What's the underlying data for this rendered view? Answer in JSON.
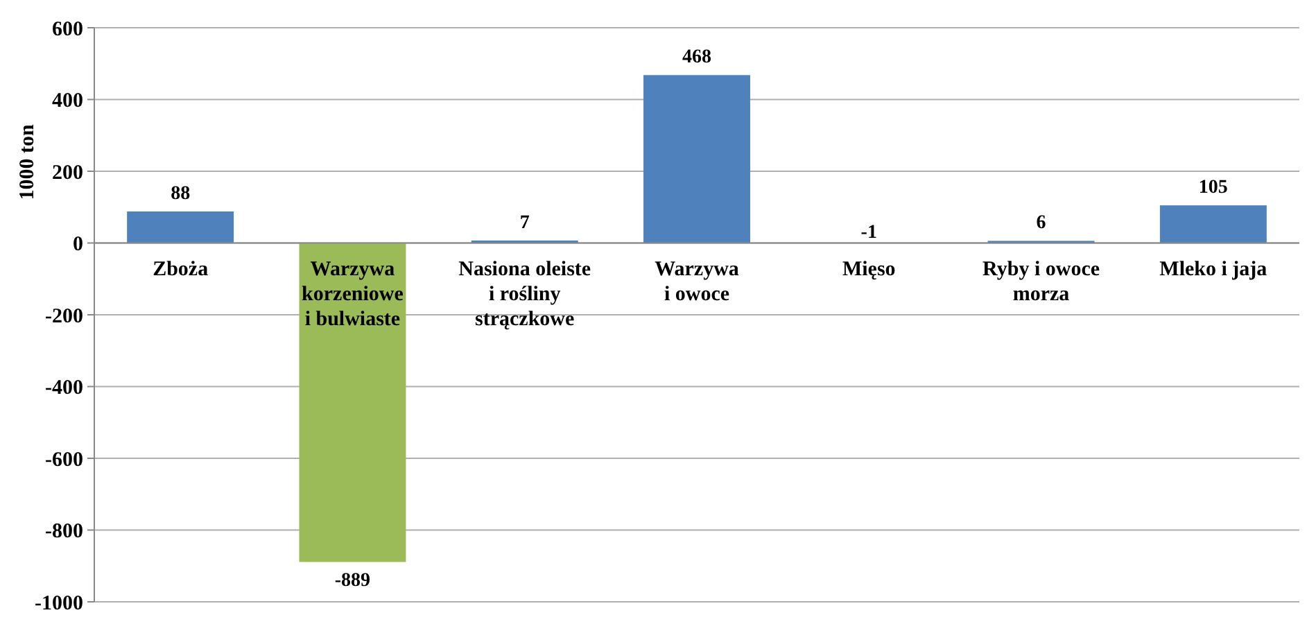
{
  "chart_data": {
    "type": "bar",
    "ylabel": "1000 ton",
    "categories": [
      "Zboża",
      "Warzywa korzeniowe i bulwiaste",
      "Nasiona oleiste i rośliny strączkowe",
      "Warzywa i owoce",
      "Mięso",
      "Ryby i owoce morza",
      "Mleko i jaja"
    ],
    "values": [
      88,
      -889,
      7,
      468,
      -1,
      6,
      105
    ],
    "colors": [
      "#4f81bd",
      "#9bbb59",
      "#4f81bd",
      "#4f81bd",
      "#4f81bd",
      "#4f81bd",
      "#4f81bd"
    ],
    "ylim": [
      -1000,
      600
    ],
    "yticks": [
      -1000,
      -800,
      -600,
      -400,
      -200,
      0,
      200,
      400,
      600
    ],
    "grid": "y",
    "data_labels": true
  }
}
